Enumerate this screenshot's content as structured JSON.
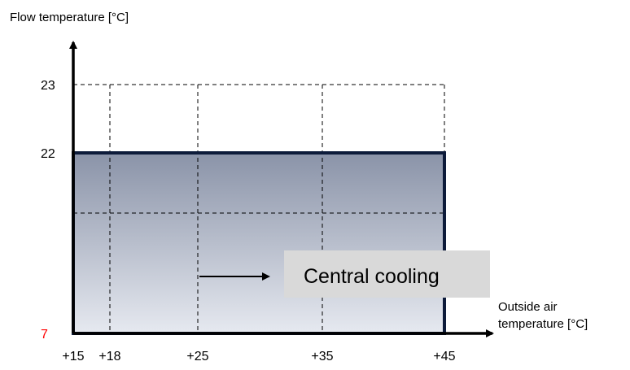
{
  "y_axis_title": "Flow temperature [°C]",
  "x_axis_title_line1": "Outside air",
  "x_axis_title_line2": "temperature [°C]",
  "y_ticks": [
    {
      "label": "23",
      "value": 23,
      "color": "#000000"
    },
    {
      "label": "22",
      "value": 22,
      "color": "#000000"
    },
    {
      "label": "7",
      "value": 7,
      "color": "#ff0000"
    }
  ],
  "x_ticks": [
    {
      "label": "+15",
      "value": 15
    },
    {
      "label": "+18",
      "value": 18
    },
    {
      "label": "+25",
      "value": 25
    },
    {
      "label": "+35",
      "value": 35
    },
    {
      "label": "+45",
      "value": 45
    }
  ],
  "region": {
    "label": "Central cooling",
    "x_range": [
      15,
      45
    ],
    "y_range": [
      7,
      22
    ],
    "fill_top_color": "#8a93a8",
    "fill_bottom_color": "#e6e9f0",
    "border_color": "#0d1b3a",
    "label_box_color": "#d9d9d9"
  }
}
